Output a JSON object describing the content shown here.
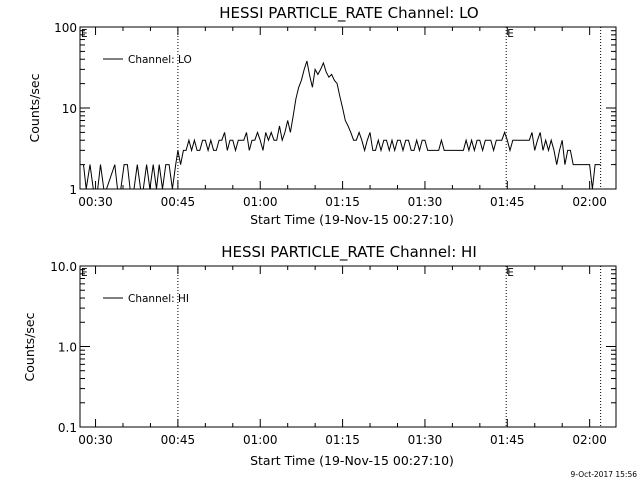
{
  "footer_timestamp": "9-Oct-2017 15:56",
  "chart_data": [
    {
      "type": "line",
      "title": "HESSI PARTICLE_RATE Channel: LO",
      "xlabel": "Start Time (19-Nov-15 00:27:10)",
      "ylabel": "Counts/sec",
      "yscale": "log",
      "ylim": [
        1,
        100
      ],
      "y_tick_labels": [
        "1",
        "10",
        "100"
      ],
      "y_tick_values": [
        1,
        10,
        100
      ],
      "xlim_minutes_after_00_00": [
        27.17,
        124.8
      ],
      "x_tick_labels": [
        "00:30",
        "00:45",
        "01:00",
        "01:15",
        "01:30",
        "01:45",
        "02:00"
      ],
      "x_tick_values": [
        30,
        45,
        60,
        75,
        90,
        105,
        120
      ],
      "legend": {
        "label": "Channel: LO",
        "placement": "top-left"
      },
      "markers": [
        {
          "label": "E",
          "x": 27.17,
          "style": "letter"
        },
        {
          "label": "",
          "x": 45.0,
          "style": "dotted"
        },
        {
          "label": "E",
          "x": 104.8,
          "style": "dotted"
        },
        {
          "label": "",
          "x": 122.0,
          "style": "dotted"
        }
      ],
      "series": [
        {
          "name": "Channel: LO",
          "x": [
            27.8,
            28.3,
            29.0,
            29.6,
            30.4,
            30.9,
            31.5,
            32.0,
            33.5,
            34.0,
            34.6,
            35.2,
            35.8,
            36.3,
            37.0,
            37.6,
            38.2,
            38.7,
            39.3,
            39.9,
            40.5,
            41.1,
            41.6,
            42.2,
            42.8,
            43.4,
            44.0,
            44.6,
            45.0,
            45.5,
            46.0,
            46.5,
            47.0,
            47.5,
            48.0,
            48.5,
            49.0,
            49.5,
            50.0,
            50.5,
            51.0,
            51.5,
            52.0,
            52.5,
            53.0,
            53.5,
            54.0,
            54.5,
            55.0,
            55.5,
            56.0,
            56.5,
            57.0,
            57.5,
            58.0,
            58.5,
            59.0,
            59.5,
            60.0,
            60.5,
            61.0,
            61.5,
            62.0,
            62.5,
            63.0,
            63.5,
            64.0,
            64.5,
            65.0,
            65.5,
            66.0,
            66.5,
            67.0,
            67.5,
            68.0,
            68.5,
            69.0,
            69.5,
            70.0,
            70.5,
            71.0,
            71.5,
            72.0,
            72.5,
            73.0,
            73.5,
            74.0,
            74.5,
            75.0,
            75.5,
            76.0,
            76.5,
            77.0,
            77.5,
            78.0,
            78.5,
            79.0,
            79.5,
            80.0,
            80.5,
            81.0,
            81.5,
            82.0,
            82.5,
            83.0,
            83.5,
            84.0,
            84.5,
            85.0,
            85.5,
            86.0,
            86.5,
            87.0,
            87.5,
            88.0,
            88.5,
            89.0,
            89.5,
            90.0,
            90.5,
            91.0,
            91.5,
            92.0,
            92.5,
            93.0,
            93.5,
            94.0,
            94.5,
            95.0,
            95.5,
            96.0,
            96.5,
            97.0,
            97.5,
            98.0,
            98.5,
            99.0,
            99.5,
            100.0,
            100.5,
            101.0,
            101.5,
            102.0,
            102.5,
            103.0,
            103.5,
            104.0,
            104.5,
            105.0,
            105.5,
            106.0,
            106.5,
            107.0,
            107.5,
            108.0,
            108.5,
            109.0,
            109.5,
            110.0,
            110.5,
            111.0,
            111.5,
            112.0,
            112.5,
            113.0,
            113.5,
            114.0,
            114.5,
            115.0,
            115.5,
            116.0,
            116.5,
            117.0,
            117.5,
            118.0,
            118.5,
            119.0,
            119.5,
            120.0,
            120.5,
            121.0,
            121.5,
            122.0
          ],
          "values": [
            2,
            1,
            2,
            1,
            1,
            2,
            1,
            1,
            2,
            1,
            1,
            2,
            2,
            1,
            1,
            2,
            1,
            1,
            2,
            1,
            2,
            1,
            2,
            1,
            2,
            2,
            1,
            2,
            3,
            2,
            3,
            3,
            4,
            3,
            4,
            3,
            3,
            4,
            4,
            3,
            4,
            3,
            3,
            4,
            4,
            5,
            3,
            4,
            4,
            3,
            4,
            4,
            4,
            5,
            3,
            4,
            4,
            5,
            4,
            3,
            5,
            4,
            5,
            4,
            4,
            6,
            4,
            5,
            7,
            5,
            8,
            13,
            18,
            22,
            30,
            38,
            25,
            18,
            30,
            26,
            30,
            36,
            28,
            24,
            26,
            22,
            20,
            14,
            10,
            7,
            6,
            5,
            4,
            4,
            5,
            4,
            3,
            4,
            5,
            3,
            3,
            4,
            3,
            4,
            4,
            3,
            4,
            3,
            4,
            4,
            3,
            4,
            4,
            3,
            3,
            4,
            3,
            4,
            4,
            3,
            3,
            3,
            3,
            3,
            4,
            3,
            3,
            3,
            3,
            3,
            3,
            3,
            3,
            4,
            3,
            4,
            3,
            4,
            4,
            3,
            4,
            4,
            4,
            3,
            4,
            4,
            4,
            5,
            4,
            3,
            4,
            4,
            4,
            4,
            4,
            4,
            4,
            5,
            3,
            4,
            5,
            3,
            4,
            3,
            4,
            3,
            2,
            3,
            4,
            2,
            3,
            3,
            2,
            2,
            2,
            2,
            2,
            2,
            2,
            1,
            2,
            2,
            2
          ]
        }
      ]
    },
    {
      "type": "line",
      "title": "HESSI PARTICLE_RATE Channel: HI",
      "xlabel": "Start Time (19-Nov-15 00:27:10)",
      "ylabel": "Counts/sec",
      "yscale": "log",
      "ylim": [
        0.1,
        10
      ],
      "y_tick_labels": [
        "0.1",
        "1.0",
        "10.0"
      ],
      "y_tick_values": [
        0.1,
        1,
        10
      ],
      "xlim_minutes_after_00_00": [
        27.17,
        124.8
      ],
      "x_tick_labels": [
        "00:30",
        "00:45",
        "01:00",
        "01:15",
        "01:30",
        "01:45",
        "02:00"
      ],
      "x_tick_values": [
        30,
        45,
        60,
        75,
        90,
        105,
        120
      ],
      "legend": {
        "label": "Channel: HI",
        "placement": "top-left"
      },
      "markers": [
        {
          "label": "E",
          "x": 27.17,
          "style": "letter"
        },
        {
          "label": "",
          "x": 45.0,
          "style": "dotted"
        },
        {
          "label": "E",
          "x": 104.8,
          "style": "dotted"
        },
        {
          "label": "",
          "x": 122.0,
          "style": "dotted"
        }
      ],
      "series": [
        {
          "name": "Channel: HI",
          "x": [],
          "values": []
        }
      ]
    }
  ]
}
